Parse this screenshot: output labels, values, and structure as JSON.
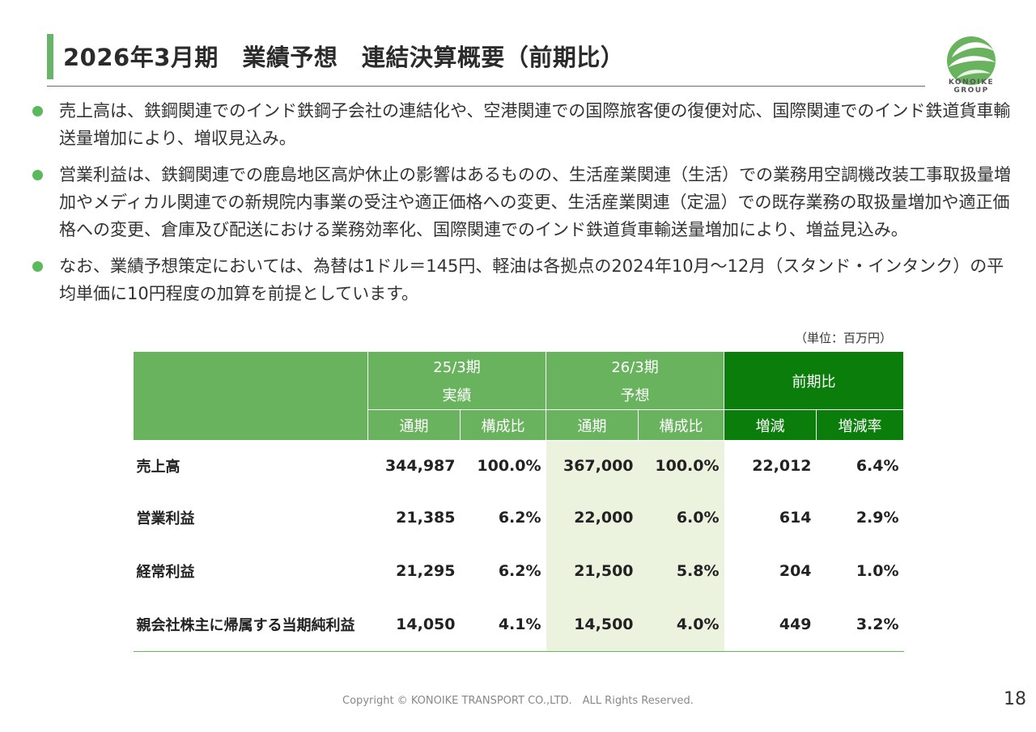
{
  "title": "2026年3月期　業績予想　連結決算概要（前期比）",
  "logo": {
    "line1": "KONOIKE",
    "line2": "GROUP"
  },
  "bullets": [
    "売上高は、鉄鋼関連でのインド鉄鋼子会社の連結化や、空港関連での国際旅客便の復便対応、国際関連でのインド鉄道貨車輸送量増加により、増収見込み。",
    "営業利益は、鉄鋼関連での鹿島地区高炉休止の影響はあるものの、生活産業関連（生活）での業務用空調機改装工事取扱量増加やメディカル関連での新規院内事業の受注や適正価格への変更、生活産業関連（定温）での既存業務の取扱量増加や適正価格への変更、倉庫及び配送における業務効率化、国際関連でのインド鉄道貨車輸送量増加により、増益見込み。",
    "なお、業績予想策定においては、為替は1ドル＝145円、軽油は各拠点の2024年10月～12月（スタンド・インタンク）の平均単価に10円程度の加算を前提としています。"
  ],
  "unit": "（単位：百万円）",
  "table": {
    "group1": {
      "period": "25/3期",
      "type": "実績"
    },
    "group2": {
      "period": "26/3期",
      "type": "予想"
    },
    "group3": {
      "label": "前期比"
    },
    "sub": {
      "annual": "通期",
      "ratio": "構成比",
      "change": "増減",
      "change_rate": "増減率"
    },
    "rows": [
      {
        "label": "売上高",
        "v1": "344,987",
        "r1": "100.0%",
        "v2": "367,000",
        "r2": "100.0%",
        "chg": "22,012",
        "rate": "6.4%"
      },
      {
        "label": "営業利益",
        "v1": "21,385",
        "r1": "6.2%",
        "v2": "22,000",
        "r2": "6.0%",
        "chg": "614",
        "rate": "2.9%"
      },
      {
        "label": "経常利益",
        "v1": "21,295",
        "r1": "6.2%",
        "v2": "21,500",
        "r2": "5.8%",
        "chg": "204",
        "rate": "1.0%"
      },
      {
        "label": "親会社株主に帰属する当期純利益",
        "v1": "14,050",
        "r1": "4.1%",
        "v2": "14,500",
        "r2": "4.0%",
        "chg": "449",
        "rate": "3.2%"
      }
    ]
  },
  "footer": "Copyright © KONOIKE TRANSPORT CO.,LTD.　ALL Rights Reserved.",
  "page_number": "18",
  "colors": {
    "accent": "#6ab35e",
    "accent_dark": "#0a7d0a",
    "highlight": "#ebf2dd"
  }
}
